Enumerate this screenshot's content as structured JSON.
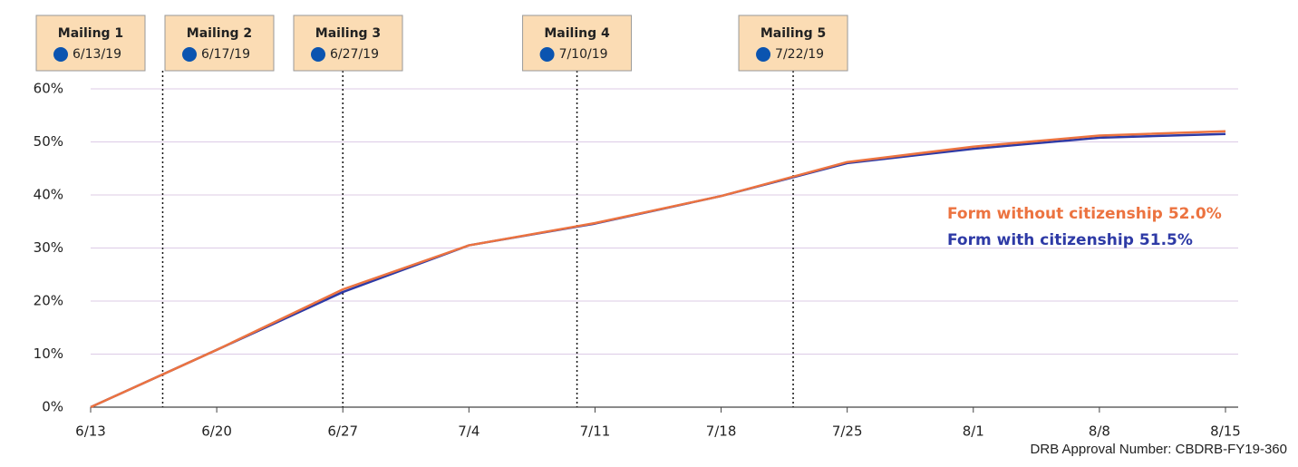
{
  "chart_data": {
    "type": "line",
    "categories": [
      "6/13",
      "6/20",
      "6/27",
      "7/4",
      "7/11",
      "7/18",
      "7/25",
      "8/1",
      "8/8",
      "8/15"
    ],
    "series": [
      {
        "name": "Form with citizenship",
        "color": "#2e3aa6",
        "values": [
          0,
          10.8,
          21.7,
          30.5,
          34.6,
          39.8,
          46.0,
          48.7,
          50.8,
          51.5
        ],
        "value_labels": [
          null,
          null,
          null,
          null,
          null,
          null,
          null,
          null,
          null,
          "51.5%"
        ]
      },
      {
        "name": "Form without citizenship",
        "color": "#ec7340",
        "values": [
          0,
          10.8,
          22.2,
          30.5,
          34.7,
          39.8,
          46.2,
          49.1,
          51.2,
          52.0
        ],
        "value_labels": [
          null,
          null,
          null,
          null,
          null,
          null,
          null,
          null,
          null,
          "52.0%"
        ]
      }
    ],
    "ylim": [
      0,
      60
    ],
    "yticks": [
      {
        "value": 0,
        "label": "0%"
      },
      {
        "value": 10,
        "label": "10%"
      },
      {
        "value": 20,
        "label": "20%"
      },
      {
        "value": 30,
        "label": "30%"
      },
      {
        "value": 40,
        "label": "40%"
      },
      {
        "value": 50,
        "label": "50%"
      },
      {
        "value": 60,
        "label": "60%"
      }
    ],
    "grid": true,
    "mailings": [
      {
        "label": "Mailing 1",
        "date": "6/13/19"
      },
      {
        "label": "Mailing 2",
        "date": "6/17/19"
      },
      {
        "label": "Mailing 3",
        "date": "6/27/19"
      },
      {
        "label": "Mailing 4",
        "date": "7/10/19"
      },
      {
        "label": "Mailing 5",
        "date": "7/22/19"
      }
    ],
    "footnote": "DRB Approval Number: CBDRB-FY19-360"
  }
}
